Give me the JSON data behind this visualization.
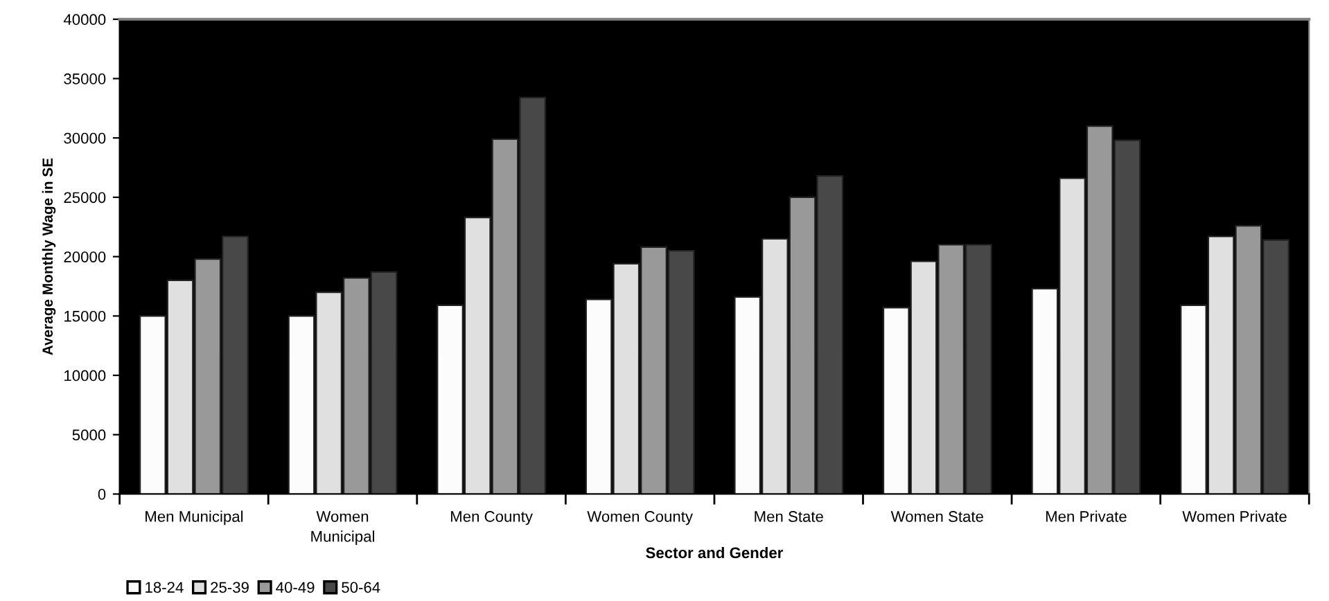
{
  "chart_data": {
    "type": "bar",
    "xlabel": "Sector and Gender",
    "ylabel": "Average Monthly Wage in SE",
    "categories": [
      "Men Municipal",
      "Women Municipal",
      "Men County",
      "Women County",
      "Men State",
      "Women State",
      "Men Private",
      "Women Private"
    ],
    "series": [
      {
        "name": "18-24",
        "color": "#fcfcfc",
        "values": [
          15000,
          15000,
          15900,
          16400,
          16600,
          15700,
          17300,
          15900
        ]
      },
      {
        "name": "25-39",
        "color": "#e0e0e0",
        "values": [
          18000,
          17000,
          23300,
          19400,
          21500,
          19600,
          26600,
          21700
        ]
      },
      {
        "name": "40-49",
        "color": "#999999",
        "values": [
          19800,
          18200,
          29900,
          20800,
          25000,
          21000,
          31000,
          22600
        ]
      },
      {
        "name": "50-64",
        "color": "#484848",
        "values": [
          21700,
          18700,
          33400,
          20500,
          26800,
          21000,
          29800,
          21400
        ]
      }
    ],
    "ylim": [
      0,
      40000
    ],
    "yticks": [
      0,
      5000,
      10000,
      15000,
      20000,
      25000,
      30000,
      35000,
      40000
    ],
    "grid": false,
    "legend": "bottom left"
  }
}
